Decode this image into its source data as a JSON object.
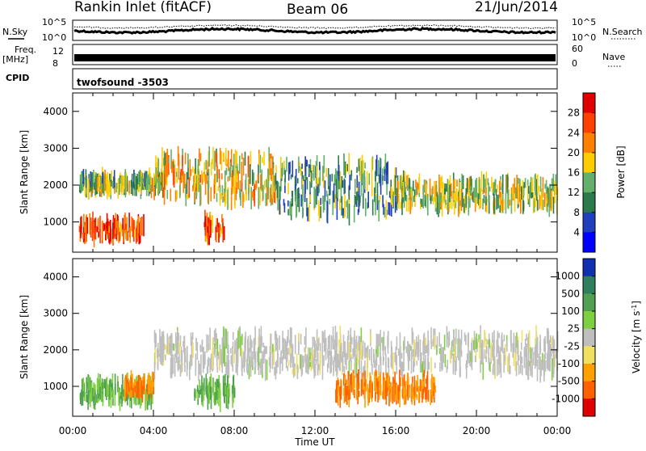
{
  "header": {
    "station": "Rankin Inlet (fitACF)",
    "beam": "Beam 06",
    "date": "21/Jun/2014"
  },
  "strip": {
    "nsky_label": "N.Sky",
    "nsearch_label": "N.Search",
    "freq_label": "Freq.",
    "freq_unit": "[MHz]",
    "nave_label": "Nave",
    "cpid_label": "CPID",
    "cpid_value": "twofsound -3503",
    "noise_ticks_left": [
      "10^5",
      "10^0"
    ],
    "noise_ticks_right": [
      "10^5",
      "10^0"
    ],
    "freq_ticks": [
      "12",
      "8"
    ],
    "nave_ticks": [
      "60",
      "0"
    ]
  },
  "chart_data": [
    {
      "type": "heatmap",
      "name": "power",
      "ylabel": "Slant Range [km]",
      "ylim": [
        180,
        4500
      ],
      "yticks": [
        1000,
        2000,
        3000,
        4000
      ],
      "colorbar": {
        "label": "Power [dB]",
        "ticks": [
          4,
          8,
          12,
          16,
          20,
          24,
          28
        ],
        "colors": [
          "#0000ff",
          "#1f3fbf",
          "#2c7a4a",
          "#62b06a",
          "#ffcc00",
          "#ff8000",
          "#ff4000",
          "#e00000"
        ]
      },
      "echo_regions": [
        {
          "t": [
            0.3,
            3.5
          ],
          "r": [
            600,
            1000
          ],
          "level": 26
        },
        {
          "t": [
            0.3,
            4.5
          ],
          "r": [
            1900,
            2200
          ],
          "level": 14
        },
        {
          "t": [
            4.0,
            10.0
          ],
          "r": [
            1600,
            2800
          ],
          "level": 18
        },
        {
          "t": [
            6.5,
            7.5
          ],
          "r": [
            600,
            1100
          ],
          "level": 24
        },
        {
          "t": [
            10.0,
            16.0
          ],
          "r": [
            1200,
            2600
          ],
          "level": 12
        },
        {
          "t": [
            16.0,
            24.0
          ],
          "r": [
            1400,
            2100
          ],
          "level": 16
        }
      ]
    },
    {
      "type": "heatmap",
      "name": "velocity",
      "xlabel": "Time UT",
      "ylabel": "Slant Range [km]",
      "ylim": [
        180,
        4500
      ],
      "yticks": [
        1000,
        2000,
        3000,
        4000
      ],
      "xticks": [
        "00:00",
        "04:00",
        "08:00",
        "12:00",
        "16:00",
        "20:00",
        "00:00"
      ],
      "colorbar": {
        "label": "Velocity [m s^-1]",
        "ticks": [
          1000,
          500,
          100,
          25,
          -25,
          -100,
          -500,
          -1000
        ],
        "colors": [
          "#1030b0",
          "#2f7f5f",
          "#4fa050",
          "#7fd040",
          "#bebebe",
          "#f0e060",
          "#ffa000",
          "#ff6000",
          "#e00000"
        ]
      },
      "echo_regions": [
        {
          "t": [
            0.3,
            4.0
          ],
          "r": [
            600,
            1100
          ],
          "level": 100
        },
        {
          "t": [
            2.5,
            4.0
          ],
          "r": [
            800,
            1200
          ],
          "level": -500
        },
        {
          "t": [
            4.0,
            24.0
          ],
          "r": [
            1400,
            2400
          ],
          "level": 0
        },
        {
          "t": [
            6.0,
            8.0
          ],
          "r": [
            600,
            1100
          ],
          "level": 100
        },
        {
          "t": [
            13.0,
            18.0
          ],
          "r": [
            700,
            1200
          ],
          "level": -500
        }
      ]
    }
  ]
}
